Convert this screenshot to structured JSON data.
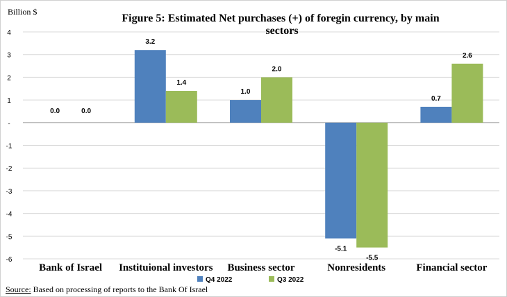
{
  "chart_data": {
    "type": "bar",
    "title": "Figure 5:  Estimated Net purchases (+) of foregin currency, by main sectors",
    "title_lines": [
      "Figure 5:  Estimated Net purchases (+) of foregin currency, by main",
      "sectors"
    ],
    "ylabel": "Billion $",
    "categories": [
      "Bank of Israel",
      "Institutional investors",
      "Business sector",
      "Nonresidents",
      "Financial sector"
    ],
    "category_labels": [
      "Bank of Israel",
      "Instituional investors",
      "Business sector",
      "Nonresidents",
      "Financial sector"
    ],
    "series": [
      {
        "name": "Q4 2022",
        "values": [
          0.0,
          3.2,
          1.0,
          -5.1,
          0.7
        ],
        "color": "#4f81bd"
      },
      {
        "name": "Q3 2022",
        "values": [
          0.0,
          1.4,
          2.0,
          -5.5,
          2.6
        ],
        "color": "#9bbb59"
      }
    ],
    "ylim": [
      -6,
      4
    ],
    "yticks": [
      4,
      3,
      2,
      1,
      0,
      -1,
      -2,
      -3,
      -4,
      -5,
      -6
    ],
    "ytick_labels": [
      "4",
      "3",
      "2",
      "1",
      "-",
      "-1",
      "-2",
      "-3",
      "-4",
      "-5",
      "-6"
    ],
    "grid": true,
    "legend_position": "bottom"
  },
  "source": {
    "label": "Source:",
    "text": " Based on processing of reports to the Bank Of Israel"
  }
}
